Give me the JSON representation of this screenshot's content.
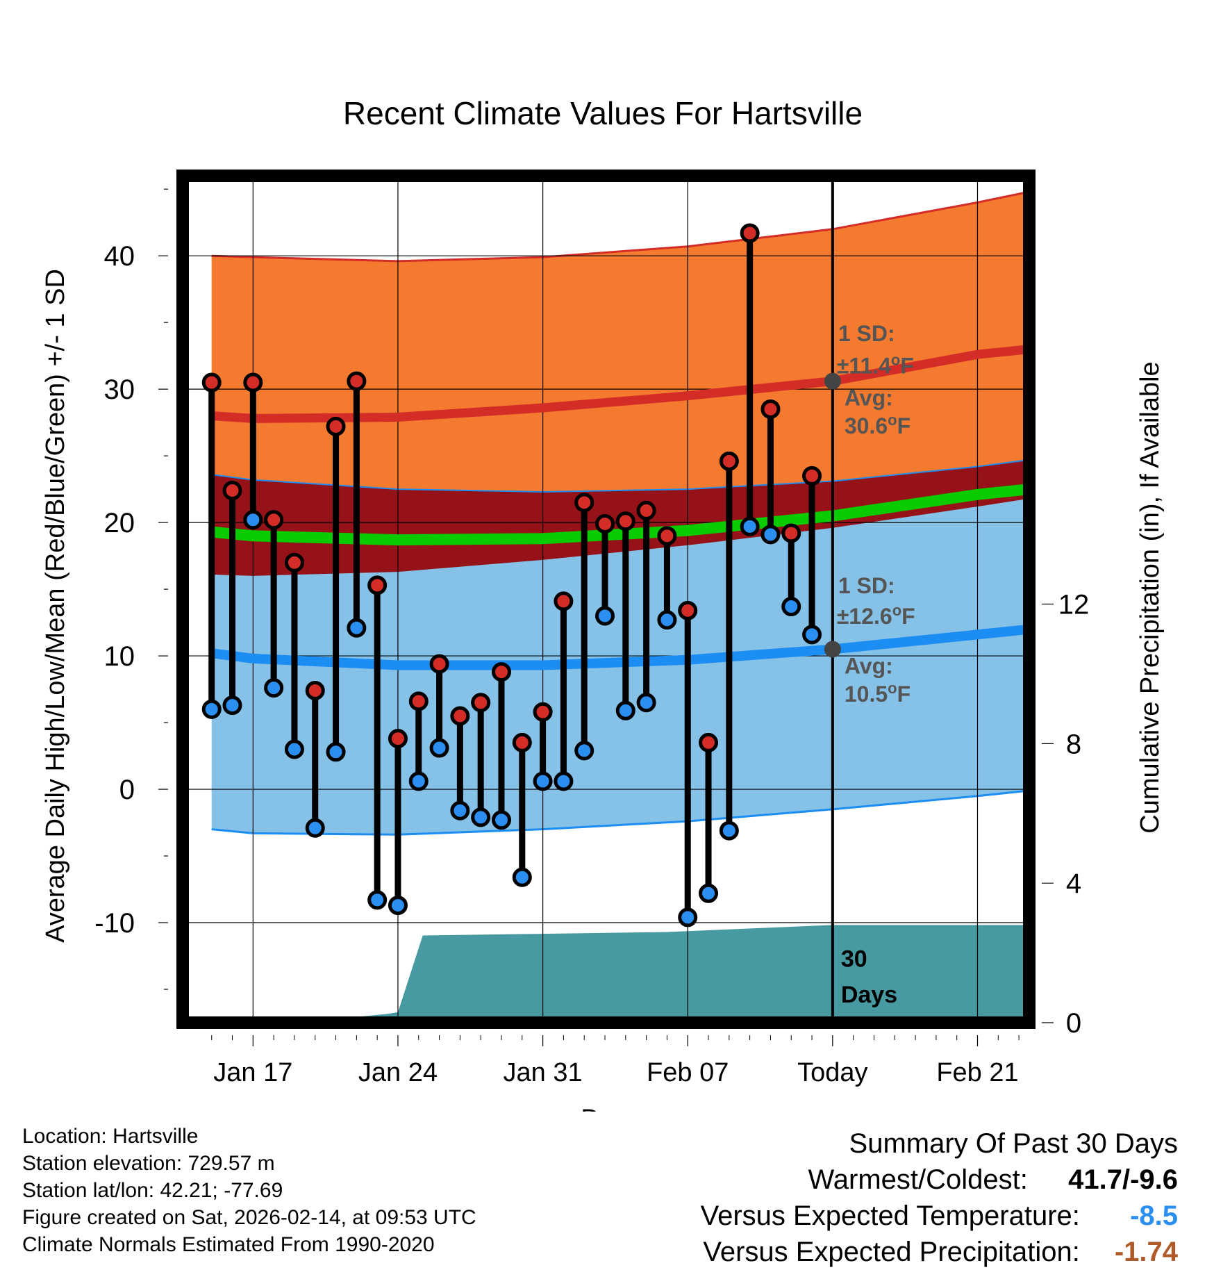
{
  "chart_data": {
    "type": "line",
    "title": "Recent Climate Values For Hartsville",
    "xlabel": "Day",
    "ylabel": "Average Daily High/Low/Mean (Red/Blue/Green) +/- 1 SD",
    "y2label": "Cumulative Precipitation (in), If Available",
    "ylim": [
      -17.5,
      46
    ],
    "y2lim": [
      0,
      24.28
    ],
    "xlim": [
      -3.4,
      37.5
    ],
    "y_ticks": [
      -10,
      0,
      10,
      20,
      30,
      40
    ],
    "y2_ticks": [
      0,
      4,
      8,
      12
    ],
    "x_ticks": [
      {
        "day": 0,
        "label": "Jan 17"
      },
      {
        "day": 7,
        "label": "Jan 24"
      },
      {
        "day": 14,
        "label": "Jan 31"
      },
      {
        "day": 21,
        "label": "Feb 07"
      },
      {
        "day": 28,
        "label": "Today"
      },
      {
        "day": 35,
        "label": "Feb 21"
      }
    ],
    "today_day": 28,
    "daily_observations": {
      "days": [
        -2,
        -1,
        0,
        1,
        2,
        3,
        4,
        5,
        6,
        7,
        8,
        9,
        10,
        11,
        12,
        13,
        14,
        15,
        16,
        17,
        18,
        19,
        20,
        21,
        22,
        23,
        24,
        25,
        26,
        27
      ],
      "highs": [
        30.5,
        22.4,
        30.5,
        20.2,
        17.0,
        7.4,
        27.2,
        30.6,
        15.3,
        3.8,
        6.6,
        9.4,
        5.5,
        6.5,
        8.8,
        3.5,
        5.8,
        14.1,
        21.5,
        19.9,
        20.1,
        20.9,
        19.0,
        13.4,
        3.5,
        24.6,
        41.7,
        28.5,
        19.2,
        23.5
      ],
      "lows": [
        6.0,
        6.3,
        20.2,
        7.6,
        3.0,
        -2.9,
        2.8,
        12.1,
        -8.3,
        -8.7,
        0.6,
        3.1,
        -1.6,
        -2.1,
        -2.3,
        -6.6,
        0.6,
        0.6,
        2.9,
        13.0,
        5.9,
        6.5,
        12.7,
        -9.6,
        -7.8,
        -3.1,
        19.7,
        19.1,
        13.7,
        11.6
      ]
    },
    "normals": {
      "days": [
        -2,
        0,
        7,
        14,
        21,
        28,
        35,
        37.5
      ],
      "high_avg": [
        28.0,
        27.8,
        27.9,
        28.6,
        29.5,
        30.6,
        32.6,
        33.0
      ],
      "high_upper": [
        40.0,
        39.9,
        39.6,
        39.9,
        40.7,
        42.0,
        44.0,
        44.8
      ],
      "high_lower": [
        16.1,
        16.0,
        16.3,
        17.2,
        18.3,
        19.6,
        21.2,
        21.8
      ],
      "low_avg": [
        10.2,
        9.8,
        9.3,
        9.3,
        9.7,
        10.5,
        11.6,
        12.0
      ],
      "low_upper": [
        23.6,
        23.2,
        22.5,
        22.3,
        22.5,
        23.1,
        24.2,
        24.7
      ],
      "low_lower": [
        -3.0,
        -3.3,
        -3.4,
        -3.0,
        -2.4,
        -1.5,
        -0.5,
        -0.1
      ],
      "mean_avg": [
        19.3,
        19.0,
        18.7,
        18.8,
        19.4,
        20.5,
        22.1,
        22.5
      ]
    },
    "annotations": {
      "high_sd_label": "1 SD:",
      "high_sd_value": "±11.4",
      "high_avg_label": "Avg:",
      "high_avg_value": "30.6",
      "low_sd_label": "1 SD:",
      "low_sd_value": "±12.6",
      "low_avg_label": "Avg:",
      "low_avg_value": "10.5",
      "degree_unit": "o",
      "unit": "F",
      "days_count": "30",
      "days_word": "Days"
    },
    "precipitation": {
      "days": [
        -3.4,
        3,
        6.5,
        7,
        8.2,
        20,
        28,
        37.5
      ],
      "cumulative": [
        0,
        0.05,
        0.25,
        0.3,
        2.5,
        2.6,
        2.8,
        2.8
      ]
    },
    "colors": {
      "high_band": "#f47a2f",
      "high_line": "#d42c27",
      "low_band": "#86c1e8",
      "low_line": "#1c8df2",
      "overlap": "#941218",
      "mean_line": "#0acb00",
      "precip": "#479aa2",
      "high_dot": "#d42c27",
      "low_dot": "#2a8ff0",
      "annotation": "#555555"
    }
  },
  "info": {
    "location": "Location: Hartsville",
    "elevation": "Station elevation: 729.57 m",
    "latlon": "Station lat/lon: 42.21; -77.69",
    "created": "Figure created on Sat, 2026-02-14, at 09:53 UTC",
    "normals": "Climate Normals Estimated From 1990-2020"
  },
  "summary": {
    "title": "Summary Of Past 30 Days",
    "warmest_label": "Warmest/Coldest:",
    "warmest_value": "41.7/-9.6",
    "temp_label": "Versus Expected Temperature:",
    "temp_value": "-8.5",
    "temp_color": "#2a8ff0",
    "precip_label": "Versus Expected Precipitation:",
    "precip_value": "-1.74",
    "precip_color": "#b05a2a"
  }
}
